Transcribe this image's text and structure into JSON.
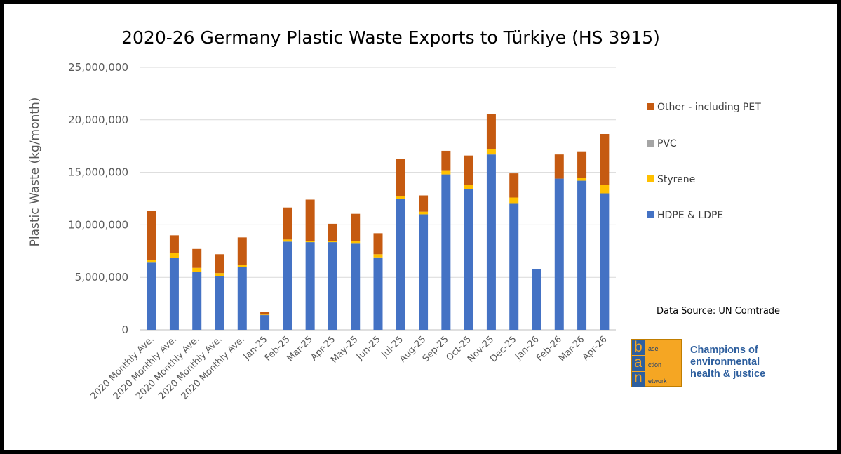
{
  "chart_data": {
    "type": "bar",
    "stacked": true,
    "title": "2020-26 Germany Plastic Waste Exports to Türkiye (HS 3915)",
    "xlabel": "",
    "ylabel": "Plastic Waste (kg/month)",
    "ylim": [
      0,
      25000000
    ],
    "yticks": [
      0,
      5000000,
      10000000,
      15000000,
      20000000,
      25000000
    ],
    "ytick_labels": [
      "0",
      "5,000,000",
      "10,000,000",
      "15,000,000",
      "20,000,000",
      "25,000,000"
    ],
    "grid": true,
    "legend_position": "right",
    "categories": [
      "2020 Monthly Ave.",
      "2020 Monthly Ave.",
      "2020 Monthly Ave.",
      "2020 Monthly Ave.",
      "2020 Monthly Ave.",
      "Jan-25",
      "Feb-25",
      "Mar-25",
      "Apr-25",
      "May-25",
      "Jun-25",
      "Jul-25",
      "Aug-25",
      "Sep-25",
      "Oct-25",
      "Nov-25",
      "Dec-25",
      "Jan-26",
      "Feb-26",
      "Mar-26",
      "Apr-26"
    ],
    "series": [
      {
        "name": "HDPE & LDPE",
        "color": "#4472c4",
        "values": [
          6400000,
          6850000,
          5500000,
          5100000,
          6000000,
          1400000,
          8400000,
          8350000,
          8350000,
          8200000,
          6900000,
          12500000,
          11000000,
          14800000,
          13400000,
          16700000,
          12000000,
          5800000,
          14400000,
          14200000,
          13000000
        ]
      },
      {
        "name": "Styrene",
        "color": "#ffc000",
        "values": [
          250000,
          450000,
          400000,
          300000,
          150000,
          50000,
          200000,
          100000,
          100000,
          250000,
          300000,
          200000,
          250000,
          400000,
          400000,
          500000,
          600000,
          0,
          0,
          300000,
          800000
        ]
      },
      {
        "name": "PVC",
        "color": "#a5a5a5",
        "values": [
          0,
          0,
          0,
          0,
          0,
          0,
          0,
          0,
          0,
          0,
          0,
          0,
          0,
          0,
          0,
          0,
          0,
          0,
          0,
          0,
          0
        ]
      },
      {
        "name": "Other - including PET",
        "color": "#c55a11",
        "values": [
          4700000,
          1700000,
          1800000,
          1800000,
          2650000,
          250000,
          3050000,
          3950000,
          1650000,
          2600000,
          2000000,
          3600000,
          1550000,
          1850000,
          2800000,
          3350000,
          2300000,
          0,
          2300000,
          2500000,
          4850000
        ]
      }
    ],
    "legend_order": [
      "Other - including PET",
      "PVC",
      "Styrene",
      "HDPE & LDPE"
    ]
  },
  "annotation": {
    "source": "Data Source: UN Comtrade"
  },
  "logo": {
    "letters": [
      "b",
      "a",
      "n"
    ],
    "words": [
      "asel",
      "ction",
      "etwork"
    ],
    "tagline": "Champions of environmental health & justice"
  }
}
